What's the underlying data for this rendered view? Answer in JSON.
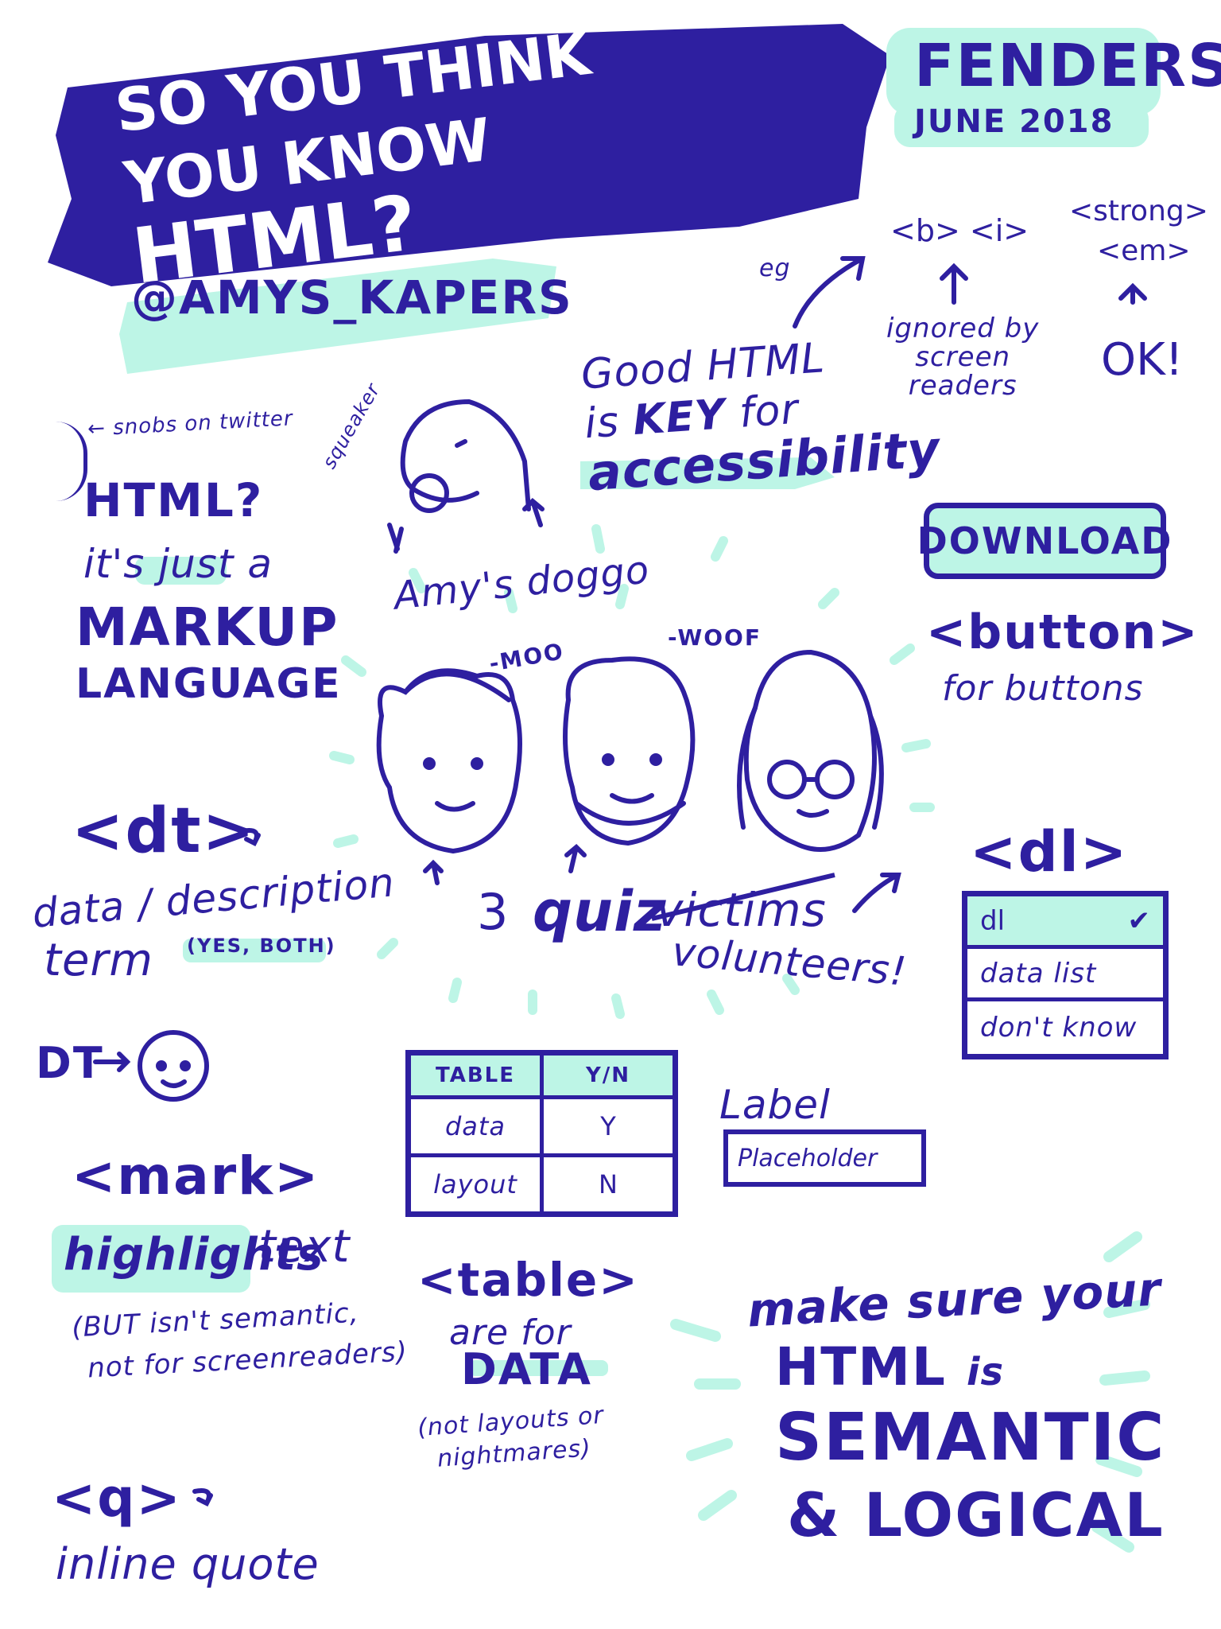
{
  "colors": {
    "ink": "#2e1fa0",
    "highlight": "#bdf5e6",
    "paper": "#ffffff"
  },
  "title": {
    "line1": "SO YOU THINK",
    "line2": "YOU KNOW",
    "emphasis": "HTML?"
  },
  "handle": "@AMYS_KAPERS",
  "event": {
    "name": "FENDERS",
    "date": "JUNE 2018"
  },
  "tags": {
    "eg": "eg",
    "b_i": "<b> <i>",
    "ignored": [
      "ignored by",
      "screen",
      "readers"
    ],
    "strong": "<strong>",
    "em": "<em>",
    "ok": "OK!"
  },
  "key_note": {
    "line1": "Good HTML",
    "line2_a": "is",
    "line2_b": "KEY",
    "line2_c": "for",
    "line3": "accessibility"
  },
  "snobs": {
    "caption": "← snobs on twitter",
    "q": "HTML?",
    "l1_a": "it's",
    "l1_b": "just",
    "l1_c": "a",
    "l2": "MARKUP",
    "l3": "LANGUAGE"
  },
  "dog": {
    "squeaker": "squeaker",
    "caption": "Amy's doggo"
  },
  "download": {
    "button": "DOWNLOAD",
    "tag": "<button>",
    "caption": "for buttons"
  },
  "quiz": {
    "moo": "-MOO",
    "woof": "-WOOF",
    "count": "3",
    "quiz": "quiz",
    "victims": "victims",
    "volunteers": "volunteers!"
  },
  "dt": {
    "tag": "<dt>",
    "l1": "data / description",
    "l2": "term",
    "note": "(YES, BOTH)",
    "person": "DT"
  },
  "dl": {
    "tag": "<dl>",
    "options": [
      "dl",
      "data list",
      "don't know"
    ],
    "check": "✔"
  },
  "table": {
    "headers": [
      "TABLE",
      "Y/N"
    ],
    "rows": [
      [
        "data",
        "Y"
      ],
      [
        "layout",
        "N"
      ]
    ],
    "tag": "<table>",
    "l1": "are for",
    "l2": "DATA",
    "note1": "(not layouts or",
    "note2": "nightmares)"
  },
  "form": {
    "label": "Label",
    "placeholder": "Placeholder"
  },
  "mark": {
    "tag": "<mark>",
    "highlight": "highlights",
    "text": "text",
    "note1": "(BUT isn't semantic,",
    "note2": "not for screenreaders)"
  },
  "q": {
    "tag": "<q>",
    "caption": "inline quote"
  },
  "closing": {
    "l1": "make sure your",
    "l2_a": "HTML",
    "l2_b": "is",
    "l3": "SEMANTIC",
    "l4": "& LOGICAL"
  }
}
